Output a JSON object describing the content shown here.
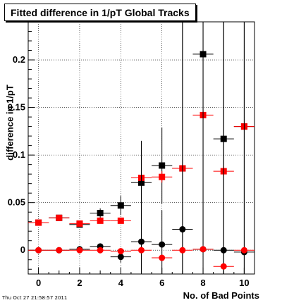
{
  "chart_data": {
    "type": "scatter",
    "title": "Fitted difference in 1/pT  Global Tracks",
    "xlabel": "No. of Bad Points",
    "ylabel": "difference in 1/pT",
    "xlim": [
      -0.5,
      10.5
    ],
    "ylim": [
      -0.025,
      0.24
    ],
    "x_ticks": [
      0,
      2,
      4,
      6,
      8,
      10
    ],
    "y_ticks": [
      0,
      0.05,
      0.1,
      0.15,
      0.2
    ],
    "y_tick_labels": [
      "0",
      "0.05",
      "0.1",
      "0.15",
      "0.2"
    ],
    "grid": true,
    "x_half_width": 0.5,
    "series": [
      {
        "marker": "square",
        "color": "#000000",
        "points": [
          {
            "x": 0,
            "y": 0.029,
            "err": 0.002
          },
          {
            "x": 1,
            "y": 0.034,
            "err": 0.002
          },
          {
            "x": 2,
            "y": 0.027,
            "err": 0.002
          },
          {
            "x": 3,
            "y": 0.039,
            "err": 0.005
          },
          {
            "x": 4,
            "y": 0.047,
            "err": 0.01
          },
          {
            "x": 5,
            "y": 0.071,
            "err": 0.008
          },
          {
            "x": 6,
            "y": 0.089,
            "err": 0.04
          },
          {
            "x": 7,
            "y": 0.086,
            "err": 0.2
          },
          {
            "x": 8,
            "y": 0.206,
            "err": 0.2
          },
          {
            "x": 9,
            "y": 0.117,
            "err": 0.2
          },
          {
            "x": 10,
            "y": 0.13,
            "err": 0.2
          }
        ]
      },
      {
        "marker": "square",
        "color": "#ff0000",
        "points": [
          {
            "x": 0,
            "y": 0.029,
            "err": 0.001
          },
          {
            "x": 1,
            "y": 0.034,
            "err": 0.001
          },
          {
            "x": 2,
            "y": 0.028,
            "err": 0.001
          },
          {
            "x": 3,
            "y": 0.031,
            "err": 0.002
          },
          {
            "x": 4,
            "y": 0.031,
            "err": 0.003
          },
          {
            "x": 5,
            "y": 0.076,
            "err": 0.005
          },
          {
            "x": 6,
            "y": 0.077,
            "err": 0.006
          },
          {
            "x": 7,
            "y": 0.086,
            "err": 0.004
          },
          {
            "x": 8,
            "y": 0.142,
            "err": 0.005
          },
          {
            "x": 9,
            "y": 0.083,
            "err": 0.005
          },
          {
            "x": 10,
            "y": 0.13,
            "err": 0.0
          }
        ]
      },
      {
        "marker": "circle",
        "color": "#000000",
        "points": [
          {
            "x": 0,
            "y": 0.0,
            "err": 0.001
          },
          {
            "x": 1,
            "y": 0.0,
            "err": 0.001
          },
          {
            "x": 2,
            "y": 0.001,
            "err": 0.002
          },
          {
            "x": 3,
            "y": 0.004,
            "err": 0.003
          },
          {
            "x": 4,
            "y": -0.007,
            "err": 0.006
          },
          {
            "x": 5,
            "y": 0.009,
            "err": 0.106
          },
          {
            "x": 6,
            "y": 0.006,
            "err": 0.036
          },
          {
            "x": 7,
            "y": 0.022,
            "err": 0.26
          },
          {
            "x": 8,
            "y": 0.001,
            "err": 0.26
          },
          {
            "x": 9,
            "y": 0.0,
            "err": 0.26
          },
          {
            "x": 10,
            "y": -0.002,
            "err": 0.26
          }
        ]
      },
      {
        "marker": "circle",
        "color": "#ff0000",
        "points": [
          {
            "x": 0,
            "y": 0.0,
            "err": 0.0
          },
          {
            "x": 1,
            "y": 0.0,
            "err": 0.0
          },
          {
            "x": 2,
            "y": 0.0,
            "err": 0.0
          },
          {
            "x": 3,
            "y": 0.0,
            "err": 0.001
          },
          {
            "x": 4,
            "y": -0.001,
            "err": 0.002
          },
          {
            "x": 5,
            "y": 0.0,
            "err": 0.002
          },
          {
            "x": 6,
            "y": -0.008,
            "err": 0.002
          },
          {
            "x": 7,
            "y": 0.0,
            "err": 0.001
          },
          {
            "x": 8,
            "y": 0.001,
            "err": 0.001
          },
          {
            "x": 9,
            "y": -0.017,
            "err": 0.001
          },
          {
            "x": 10,
            "y": 0.0,
            "err": 0.0
          }
        ]
      }
    ]
  },
  "footer": {
    "timestamp": "Thu Oct 27 21:58:57 2011"
  }
}
